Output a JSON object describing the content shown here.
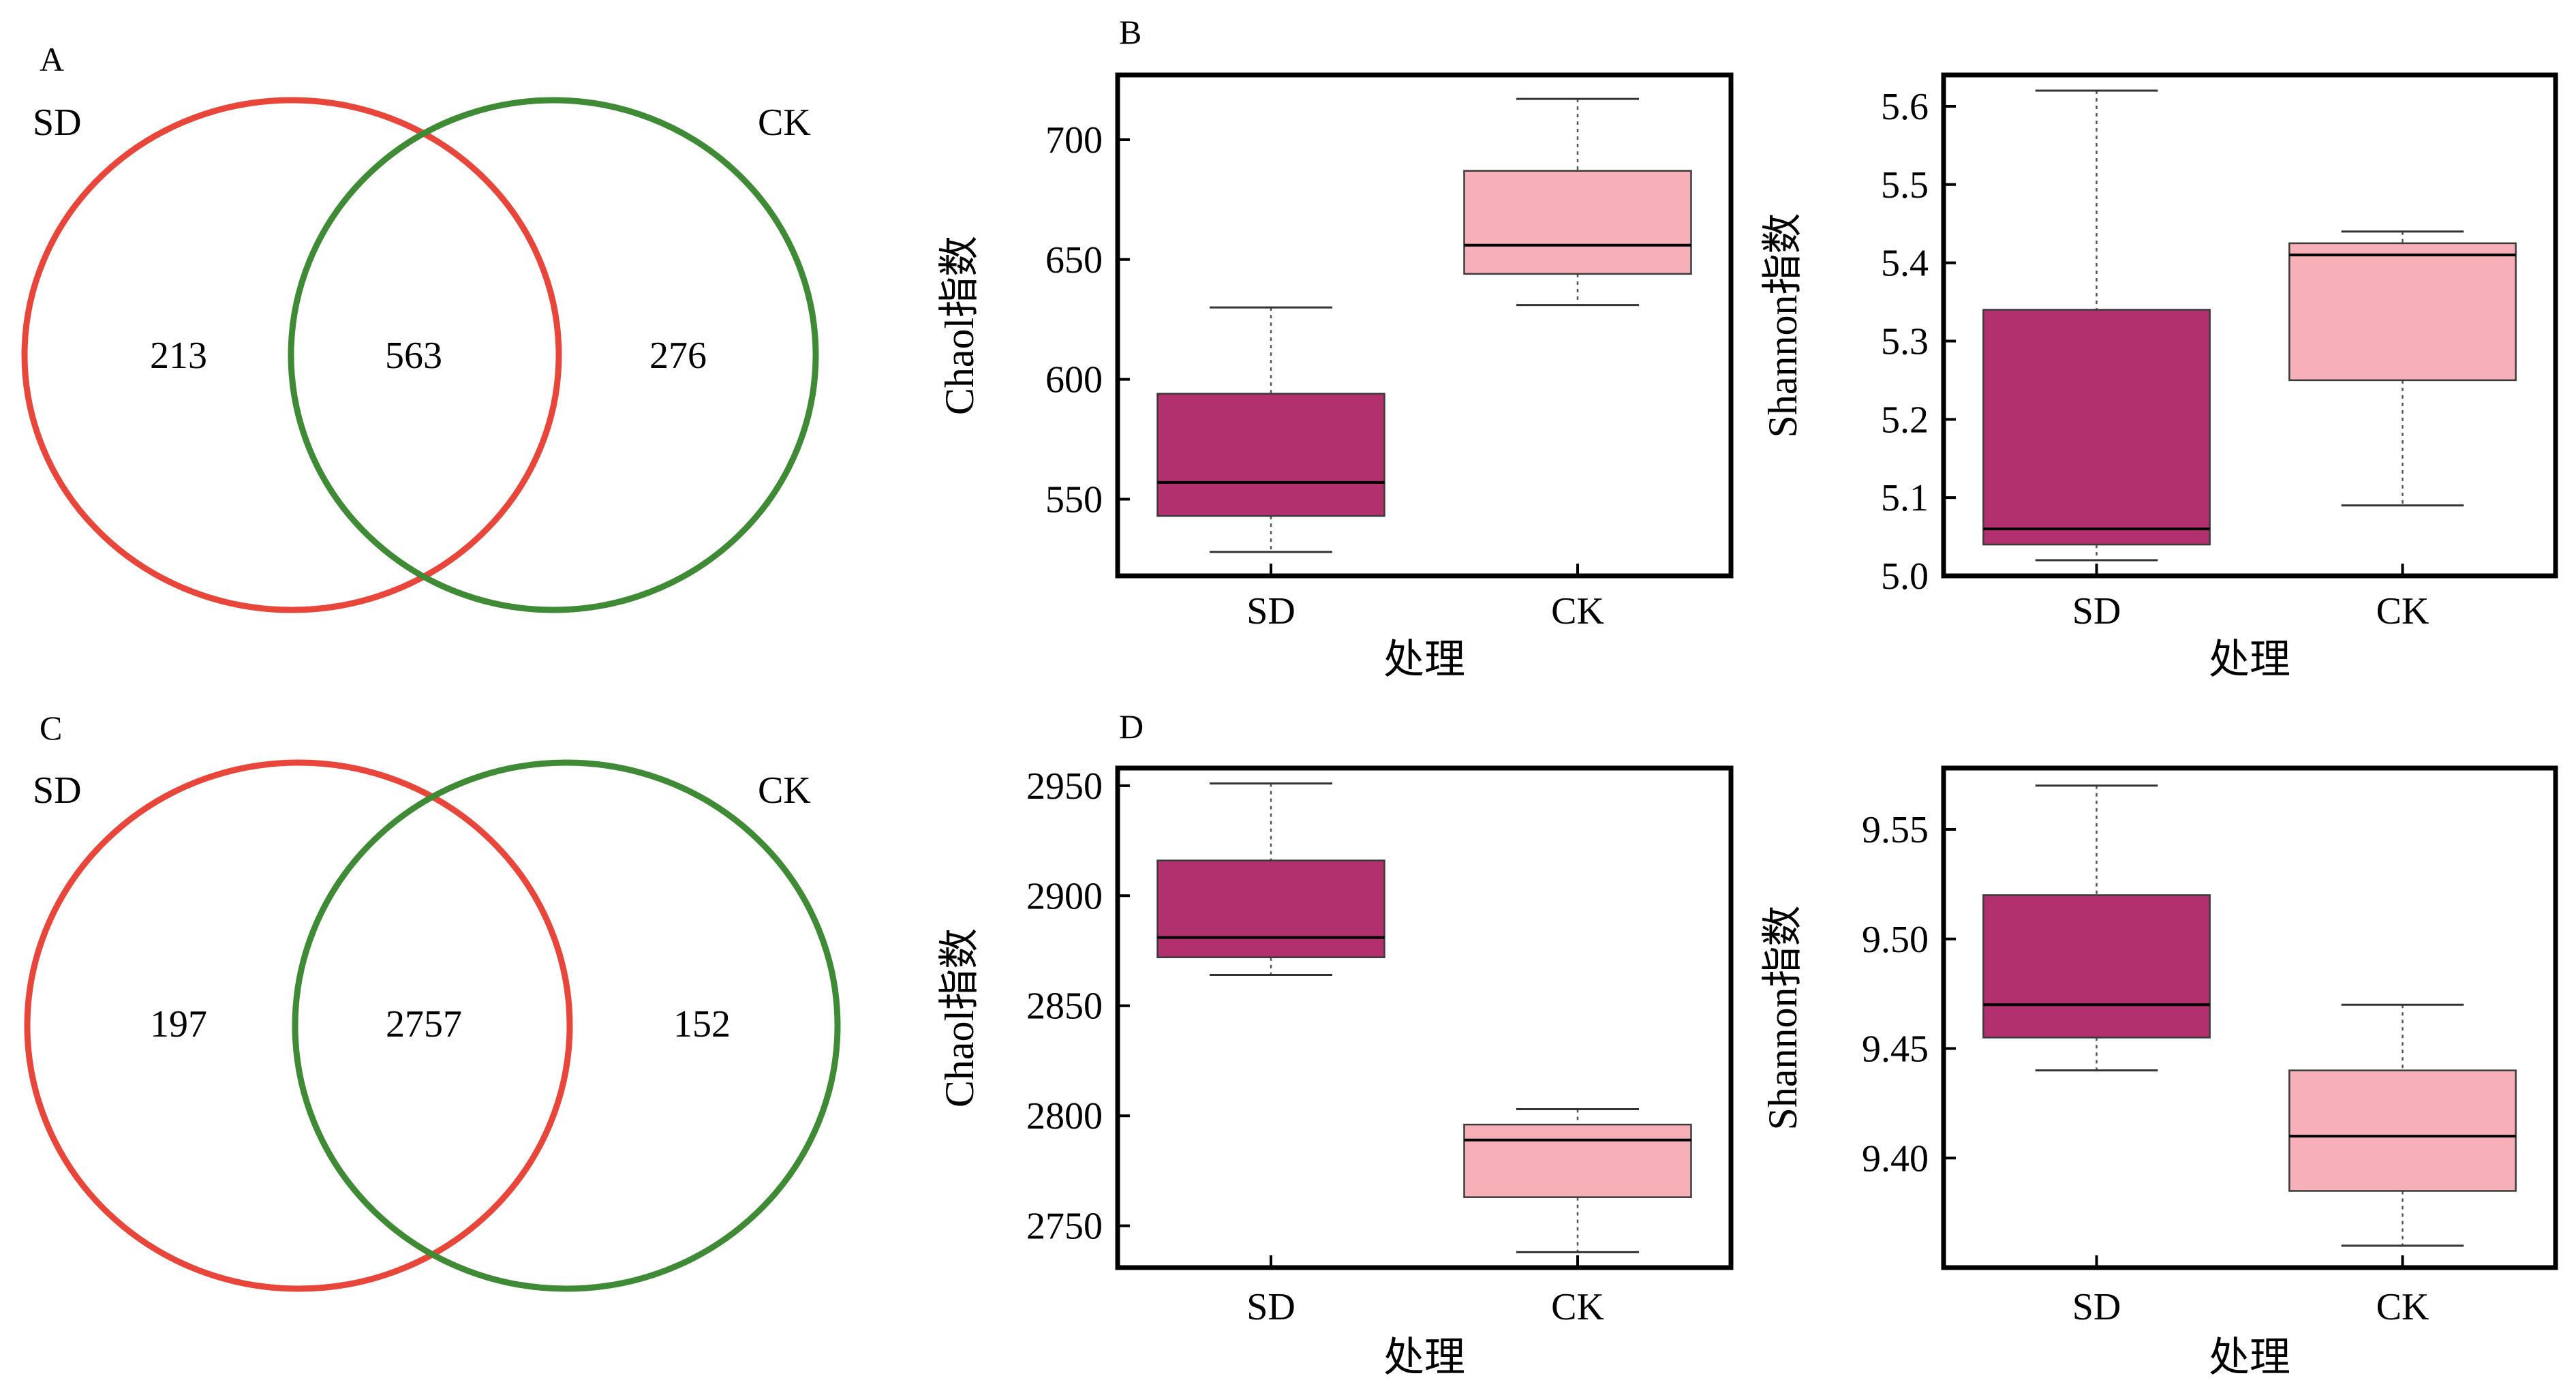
{
  "panels": {
    "A": {
      "letter": "A",
      "left_label": "SD",
      "right_label": "CK",
      "only_left": "213",
      "shared": "563",
      "only_right": "276"
    },
    "C": {
      "letter": "C",
      "left_label": "SD",
      "right_label": "CK",
      "only_left": "197",
      "shared": "2757",
      "only_right": "152"
    },
    "B": {
      "letter": "B"
    },
    "D": {
      "letter": "D"
    }
  },
  "colors": {
    "sd_circle": "#e8463a",
    "ck_circle": "#3f8a34",
    "sd_box": "#b3306e",
    "ck_box": "#f7b0b8"
  },
  "chart_data": [
    {
      "panel": "B",
      "type": "box",
      "xlabel": "处理",
      "ylabel": "Chaol指数",
      "categories": [
        "SD",
        "CK"
      ],
      "ylim": [
        518,
        727
      ],
      "yticks": [
        550,
        600,
        650,
        700
      ],
      "series": [
        {
          "name": "SD",
          "min": 528,
          "q1": 543,
          "median": 557,
          "q3": 594,
          "max": 630
        },
        {
          "name": "CK",
          "min": 631,
          "q1": 644,
          "median": 656,
          "q3": 687,
          "max": 717
        }
      ]
    },
    {
      "panel": "B",
      "type": "box",
      "xlabel": "处理",
      "ylabel": "Shannon指数",
      "categories": [
        "SD",
        "CK"
      ],
      "ylim": [
        5.0,
        5.64
      ],
      "yticks": [
        "5.0",
        "5.1",
        "5.2",
        "5.3",
        "5.4",
        "5.5",
        "5.6"
      ],
      "series": [
        {
          "name": "SD",
          "min": 5.02,
          "q1": 5.04,
          "median": 5.06,
          "q3": 5.34,
          "max": 5.62
        },
        {
          "name": "CK",
          "min": 5.09,
          "q1": 5.25,
          "median": 5.41,
          "q3": 5.425,
          "max": 5.44
        }
      ]
    },
    {
      "panel": "D",
      "type": "box",
      "xlabel": "处理",
      "ylabel": "Chaol指数",
      "categories": [
        "SD",
        "CK"
      ],
      "ylim": [
        2731,
        2958
      ],
      "yticks": [
        2750,
        2800,
        2850,
        2900,
        2950
      ],
      "series": [
        {
          "name": "SD",
          "min": 2864,
          "q1": 2872,
          "median": 2881,
          "q3": 2916,
          "max": 2951
        },
        {
          "name": "CK",
          "min": 2738,
          "q1": 2763,
          "median": 2789,
          "q3": 2796,
          "max": 2803
        }
      ]
    },
    {
      "panel": "D",
      "type": "box",
      "xlabel": "处理",
      "ylabel": "Shannon指数",
      "categories": [
        "SD",
        "CK"
      ],
      "ylim": [
        9.35,
        9.578
      ],
      "yticks": [
        "9.40",
        "9.45",
        "9.50",
        "9.55"
      ],
      "series": [
        {
          "name": "SD",
          "min": 9.44,
          "q1": 9.455,
          "median": 9.47,
          "q3": 9.52,
          "max": 9.57
        },
        {
          "name": "CK",
          "min": 9.36,
          "q1": 9.385,
          "median": 9.41,
          "q3": 9.44,
          "max": 9.47
        }
      ]
    }
  ]
}
